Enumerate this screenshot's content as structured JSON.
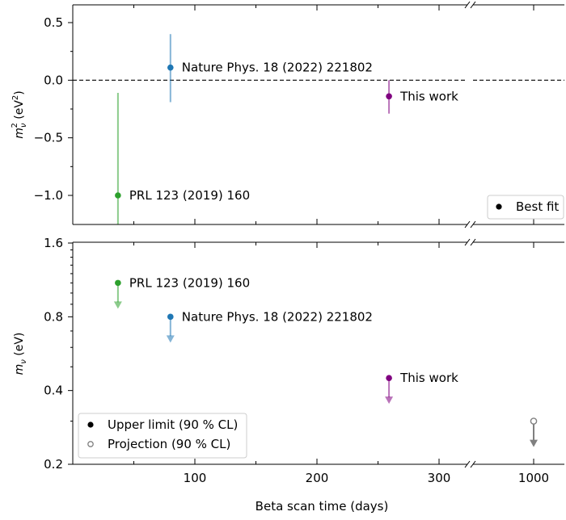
{
  "chart_data": [
    {
      "type": "scatter",
      "panel": "top",
      "ylabel": "m_ν² (eV²)",
      "ylabel_main": "m",
      "ylabel_sub": "ν",
      "ylabel_sup": "2",
      "ylabel_unit": " (eV²)",
      "ylim": [
        -1.25,
        0.65
      ],
      "yticks": [
        0.5,
        0.0,
        -0.5,
        -1.0
      ],
      "yticklabels": [
        "0.5",
        "0.0",
        "−0.5",
        "−1.0"
      ],
      "reference_line": {
        "y": 0.0,
        "style": "dashed"
      },
      "legend": {
        "label": "Best fit",
        "location": "lower-right"
      },
      "points": [
        {
          "x": 37,
          "y": -1.0,
          "err_low": -1.25,
          "err_high": -0.11,
          "color": "#2ca02c",
          "label": "PRL 123 (2019) 160"
        },
        {
          "x": 80,
          "y": 0.11,
          "err_low": -0.19,
          "err_high": 0.4,
          "color": "#1f77b4",
          "label": "Nature Phys. 18 (2022) 221802"
        },
        {
          "x": 259,
          "y": -0.14,
          "err_low": -0.29,
          "err_high": 0.0,
          "color": "#800080",
          "label": "This work"
        }
      ]
    },
    {
      "type": "scatter",
      "panel": "bottom",
      "ylabel": "m_ν (eV)",
      "ylabel_main": "m",
      "ylabel_sub": "ν",
      "ylabel_unit": " (eV)",
      "yscale": "log",
      "ylim": [
        0.2,
        1.6
      ],
      "yticks": [
        1.6,
        0.8,
        0.4,
        0.2
      ],
      "yticklabels": [
        "1.6",
        "0.8",
        "0.4",
        "0.2"
      ],
      "legend": {
        "location": "lower-left",
        "entries": [
          {
            "marker": "filled",
            "label": "Upper limit (90 % CL)"
          },
          {
            "marker": "open",
            "label": "Projection (90 % CL)"
          }
        ]
      },
      "points": [
        {
          "x": 37,
          "y": 1.1,
          "kind": "upper-limit",
          "color": "#2ca02c",
          "label": "PRL 123 (2019) 160"
        },
        {
          "x": 80,
          "y": 0.8,
          "kind": "upper-limit",
          "color": "#1f77b4",
          "label": "Nature Phys. 18 (2022) 221802"
        },
        {
          "x": 259,
          "y": 0.45,
          "kind": "upper-limit",
          "color": "#800080",
          "label": "This work"
        },
        {
          "x": 1000,
          "y": 0.3,
          "kind": "projection",
          "color": "#808080",
          "label": ""
        }
      ]
    }
  ],
  "x_axis": {
    "label": "Beta scan time (days)",
    "scale": "broken",
    "segment1_range": [
      0,
      330
    ],
    "segment2_range": [
      950,
      1050
    ],
    "ticks": [
      100,
      200,
      300,
      1000
    ],
    "ticklabels": [
      "100",
      "200",
      "300",
      "1000"
    ],
    "minor_ticks": [
      50,
      150,
      250
    ]
  }
}
